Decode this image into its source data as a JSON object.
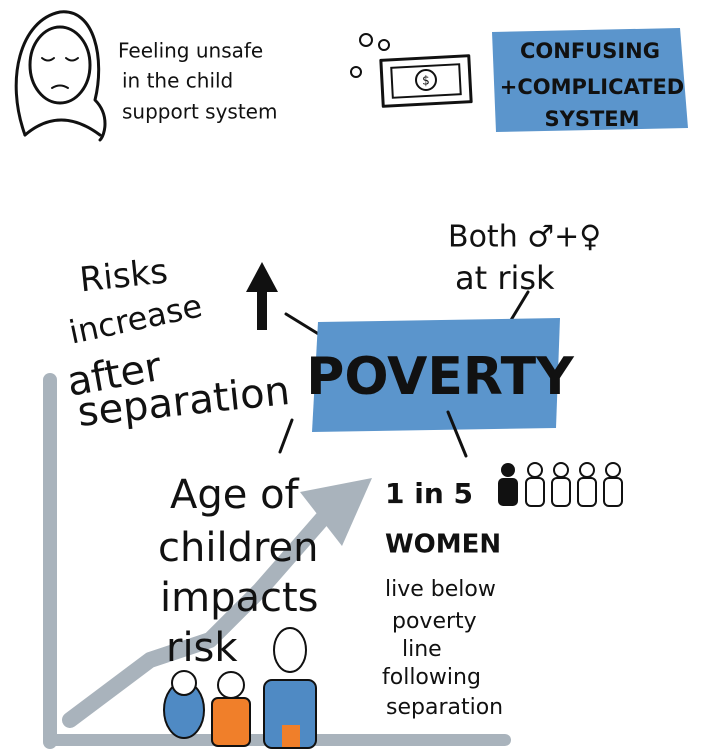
{
  "top": {
    "unsafe": {
      "lines": [
        "Feeling unsafe",
        "in the child",
        "support system"
      ]
    },
    "confusing": {
      "lines": [
        "CONFUSING",
        "+COMPLICATED",
        "SYSTEM"
      ]
    }
  },
  "gender": {
    "lines": [
      "Both ♂+♀",
      "at risk"
    ]
  },
  "risks": {
    "lines": [
      "Risks",
      "increase",
      "after",
      "separation"
    ]
  },
  "center": "POVERTY",
  "age": {
    "lines": [
      "Age of",
      "children",
      "impacts",
      "risk"
    ]
  },
  "women": {
    "stat": "1 in 5",
    "label": "WOMEN",
    "lines": [
      "live below",
      "poverty",
      "line",
      "following",
      "separation"
    ]
  }
}
